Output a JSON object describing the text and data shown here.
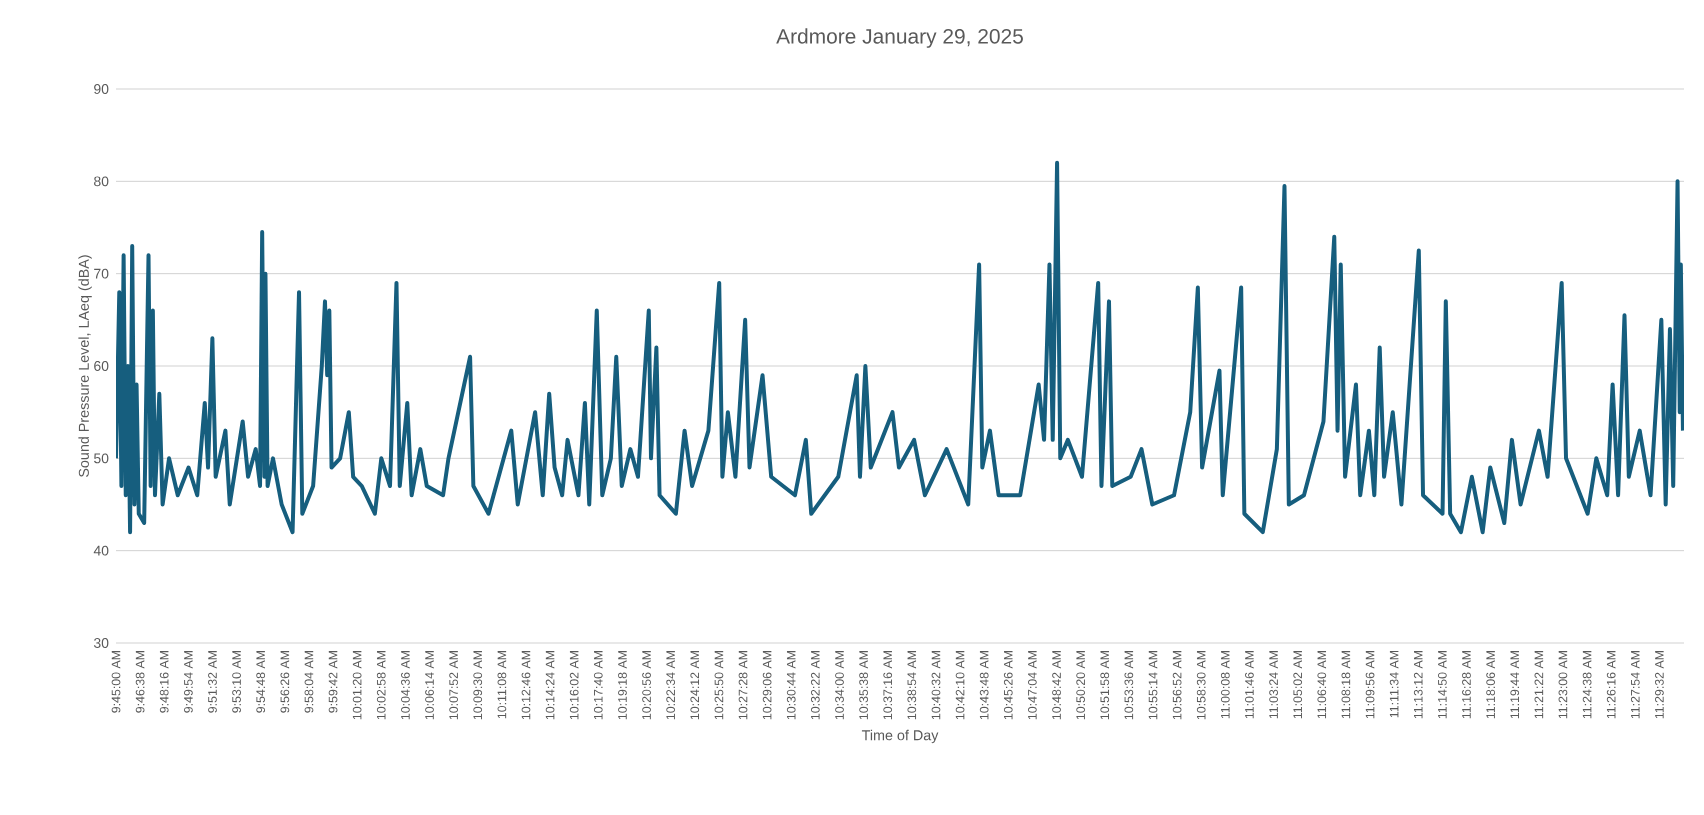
{
  "chart_data": {
    "type": "line",
    "title": "Ardmore January 29, 2025",
    "xlabel": "Time of Day",
    "ylabel": "Sound Pressure Level, LAeq (dBA)",
    "color": "#165e7e",
    "grid": "y",
    "xlim": [
      9.75,
      11.52
    ],
    "ylim": [
      30,
      90
    ],
    "yticks": [
      30,
      40,
      50,
      60,
      70,
      80,
      90
    ],
    "xticks": [
      {
        "value": 9.75,
        "label": "9:45:00 AM"
      },
      {
        "value": 9.7772,
        "label": "9:46:38 AM"
      },
      {
        "value": 9.8044,
        "label": "9:48:16 AM"
      },
      {
        "value": 9.8317,
        "label": "9:49:54 AM"
      },
      {
        "value": 9.8589,
        "label": "9:51:32 AM"
      },
      {
        "value": 9.8861,
        "label": "9:53:10 AM"
      },
      {
        "value": 9.9133,
        "label": "9:54:48 AM"
      },
      {
        "value": 9.9406,
        "label": "9:56:26 AM"
      },
      {
        "value": 9.9678,
        "label": "9:58:04 AM"
      },
      {
        "value": 9.995,
        "label": "9:59:42 AM"
      },
      {
        "value": 10.0222,
        "label": "10:01:20 AM"
      },
      {
        "value": 10.0494,
        "label": "10:02:58 AM"
      },
      {
        "value": 10.0767,
        "label": "10:04:36 AM"
      },
      {
        "value": 10.1039,
        "label": "10:06:14 AM"
      },
      {
        "value": 10.1311,
        "label": "10:07:52 AM"
      },
      {
        "value": 10.1583,
        "label": "10:09:30 AM"
      },
      {
        "value": 10.1856,
        "label": "10:11:08 AM"
      },
      {
        "value": 10.2128,
        "label": "10:12:46 AM"
      },
      {
        "value": 10.24,
        "label": "10:14:24 AM"
      },
      {
        "value": 10.2672,
        "label": "10:16:02 AM"
      },
      {
        "value": 10.2944,
        "label": "10:17:40 AM"
      },
      {
        "value": 10.3217,
        "label": "10:19:18 AM"
      },
      {
        "value": 10.3489,
        "label": "10:20:56 AM"
      },
      {
        "value": 10.3761,
        "label": "10:22:34 AM"
      },
      {
        "value": 10.4033,
        "label": "10:24:12 AM"
      },
      {
        "value": 10.4306,
        "label": "10:25:50 AM"
      },
      {
        "value": 10.4578,
        "label": "10:27:28 AM"
      },
      {
        "value": 10.485,
        "label": "10:29:06 AM"
      },
      {
        "value": 10.5122,
        "label": "10:30:44 AM"
      },
      {
        "value": 10.5394,
        "label": "10:32:22 AM"
      },
      {
        "value": 10.5667,
        "label": "10:34:00 AM"
      },
      {
        "value": 10.5939,
        "label": "10:35:38 AM"
      },
      {
        "value": 10.6211,
        "label": "10:37:16 AM"
      },
      {
        "value": 10.6483,
        "label": "10:38:54 AM"
      },
      {
        "value": 10.6756,
        "label": "10:40:32 AM"
      },
      {
        "value": 10.7028,
        "label": "10:42:10 AM"
      },
      {
        "value": 10.73,
        "label": "10:43:48 AM"
      },
      {
        "value": 10.7572,
        "label": "10:45:26 AM"
      },
      {
        "value": 10.7844,
        "label": "10:47:04 AM"
      },
      {
        "value": 10.8117,
        "label": "10:48:42 AM"
      },
      {
        "value": 10.8389,
        "label": "10:50:20 AM"
      },
      {
        "value": 10.8661,
        "label": "10:51:58 AM"
      },
      {
        "value": 10.8933,
        "label": "10:53:36 AM"
      },
      {
        "value": 10.9206,
        "label": "10:55:14 AM"
      },
      {
        "value": 10.9478,
        "label": "10:56:52 AM"
      },
      {
        "value": 10.975,
        "label": "10:58:30 AM"
      },
      {
        "value": 11.0022,
        "label": "11:00:08 AM"
      },
      {
        "value": 11.0294,
        "label": "11:01:46 AM"
      },
      {
        "value": 11.0567,
        "label": "11:03:24 AM"
      },
      {
        "value": 11.0839,
        "label": "11:05:02 AM"
      },
      {
        "value": 11.1111,
        "label": "11:06:40 AM"
      },
      {
        "value": 11.1383,
        "label": "11:08:18 AM"
      },
      {
        "value": 11.1656,
        "label": "11:09:56 AM"
      },
      {
        "value": 11.1928,
        "label": "11:11:34 AM"
      },
      {
        "value": 11.22,
        "label": "11:13:12 AM"
      },
      {
        "value": 11.2472,
        "label": "11:14:50 AM"
      },
      {
        "value": 11.2744,
        "label": "11:16:28 AM"
      },
      {
        "value": 11.3017,
        "label": "11:18:06 AM"
      },
      {
        "value": 11.3289,
        "label": "11:19:44 AM"
      },
      {
        "value": 11.3561,
        "label": "11:21:22 AM"
      },
      {
        "value": 11.3833,
        "label": "11:23:00 AM"
      },
      {
        "value": 11.4106,
        "label": "11:24:38 AM"
      },
      {
        "value": 11.4378,
        "label": "11:26:16 AM"
      },
      {
        "value": 11.465,
        "label": "11:27:54 AM"
      },
      {
        "value": 11.4922,
        "label": "11:29:32 AM"
      }
    ],
    "x": [
      9.75,
      9.7537,
      9.7561,
      9.7586,
      9.761,
      9.7634,
      9.7659,
      9.7683,
      9.7708,
      9.7732,
      9.7757,
      9.7818,
      9.7867,
      9.7891,
      9.7916,
      9.794,
      9.7989,
      9.8026,
      9.8099,
      9.8197,
      9.8319,
      9.8417,
      9.8502,
      9.8539,
      9.8588,
      9.8625,
      9.8735,
      9.8784,
      9.893,
      9.8991,
      9.9077,
      9.9126,
      9.915,
      9.9175,
      9.9187,
      9.9211,
      9.9272,
      9.937,
      9.9493,
      9.9566,
      9.9603,
      9.9725,
      9.9823,
      9.9859,
      9.9884,
      9.9908,
      9.9933,
      10.003,
      10.0128,
      10.0177,
      10.0275,
      10.0422,
      10.0495,
      10.0593,
      10.0666,
      10.0703,
      10.0788,
      10.0837,
      10.0935,
      10.1008,
      10.1192,
      10.1253,
      10.1497,
      10.1534,
      10.1705,
      10.1962,
      10.2035,
      10.2231,
      10.2317,
      10.239,
      10.2451,
      10.2536,
      10.2597,
      10.272,
      10.2793,
      10.2842,
      10.2927,
      10.2989,
      10.3086,
      10.3147,
      10.3209,
      10.3306,
      10.3392,
      10.3514,
      10.3539,
      10.36,
      10.3636,
      10.382,
      10.3918,
      10.4003,
      10.4187,
      10.4309,
      10.4345,
      10.4407,
      10.4492,
      10.4602,
      10.4651,
      10.4798,
      10.4896,
      10.5164,
      10.5287,
      10.5348,
      10.5653,
      10.5861,
      10.5898,
      10.5959,
      10.602,
      10.6265,
      10.6338,
      10.6509,
      10.6631,
      10.6876,
      10.712,
      10.7243,
      10.7279,
      10.7365,
      10.7463,
      10.7707,
      10.7829,
      10.7915,
      10.7976,
      10.8037,
      10.8074,
      10.8123,
      10.8159,
      10.8245,
      10.8404,
      10.8587,
      10.8624,
      10.8709,
      10.8746,
      10.8954,
      10.9076,
      10.9198,
      10.9443,
      10.9626,
      10.9712,
      10.976,
      10.9956,
      10.9993,
      11.0201,
      11.0237,
      11.0445,
      11.0604,
      11.069,
      11.0739,
      11.091,
      11.113,
      11.1252,
      11.1289,
      11.1325,
      11.1374,
      11.1497,
      11.1545,
      11.1643,
      11.1704,
      11.1765,
      11.1814,
      11.1912,
      11.201,
      11.2206,
      11.2254,
      11.2474,
      11.2511,
      11.256,
      11.2682,
      11.2805,
      11.2927,
      11.3013,
      11.3171,
      11.3257,
      11.3355,
      11.3562,
      11.366,
      11.3819,
      11.3868,
      11.4112,
      11.421,
      11.4333,
      11.4394,
      11.4456,
      11.4528,
      11.4577,
      11.47,
      11.4822,
      11.4944,
      11.4993,
      11.5041,
      11.5078,
      11.5127,
      11.5152,
      11.5164,
      11.5188
    ],
    "values": [
      50,
      68,
      47,
      72,
      46,
      60,
      42,
      73,
      45,
      58,
      44,
      43,
      72,
      47,
      66,
      46,
      57,
      45,
      50,
      46,
      49,
      46,
      56,
      49,
      63,
      48,
      53,
      45,
      54,
      48,
      51,
      47,
      74.5,
      48,
      70,
      47,
      50,
      45,
      42,
      68,
      44,
      47,
      60,
      67,
      59,
      66,
      49,
      50,
      55,
      48,
      47,
      44,
      50,
      47,
      69,
      47,
      56,
      46,
      51,
      47,
      46,
      50,
      61,
      47,
      44,
      53,
      45,
      55,
      46,
      57,
      49,
      46,
      52,
      46,
      56,
      45,
      66,
      46,
      50,
      61,
      47,
      51,
      48,
      66,
      50,
      62,
      46,
      44,
      53,
      47,
      53,
      69,
      48,
      55,
      48,
      65,
      49,
      59,
      48,
      46,
      52,
      44,
      48,
      59,
      48,
      60,
      49,
      55,
      49,
      52,
      46,
      51,
      45,
      71,
      49,
      53,
      46,
      46,
      53,
      58,
      52,
      71,
      52,
      82,
      50,
      52,
      48,
      69,
      47,
      67,
      47,
      48,
      51,
      45,
      46,
      55,
      68.5,
      49,
      59.5,
      46,
      68.5,
      44,
      42,
      51,
      79.5,
      45,
      46,
      54,
      74,
      53,
      71,
      48,
      58,
      46,
      53,
      46,
      62,
      48,
      55,
      45,
      72.5,
      46,
      44,
      67,
      44,
      42,
      48,
      42,
      49,
      43,
      52,
      45,
      53,
      48,
      69,
      50,
      44,
      50,
      46,
      58,
      46,
      65.5,
      48,
      53,
      46,
      65,
      45,
      64,
      47,
      80,
      55,
      71,
      53
    ]
  }
}
